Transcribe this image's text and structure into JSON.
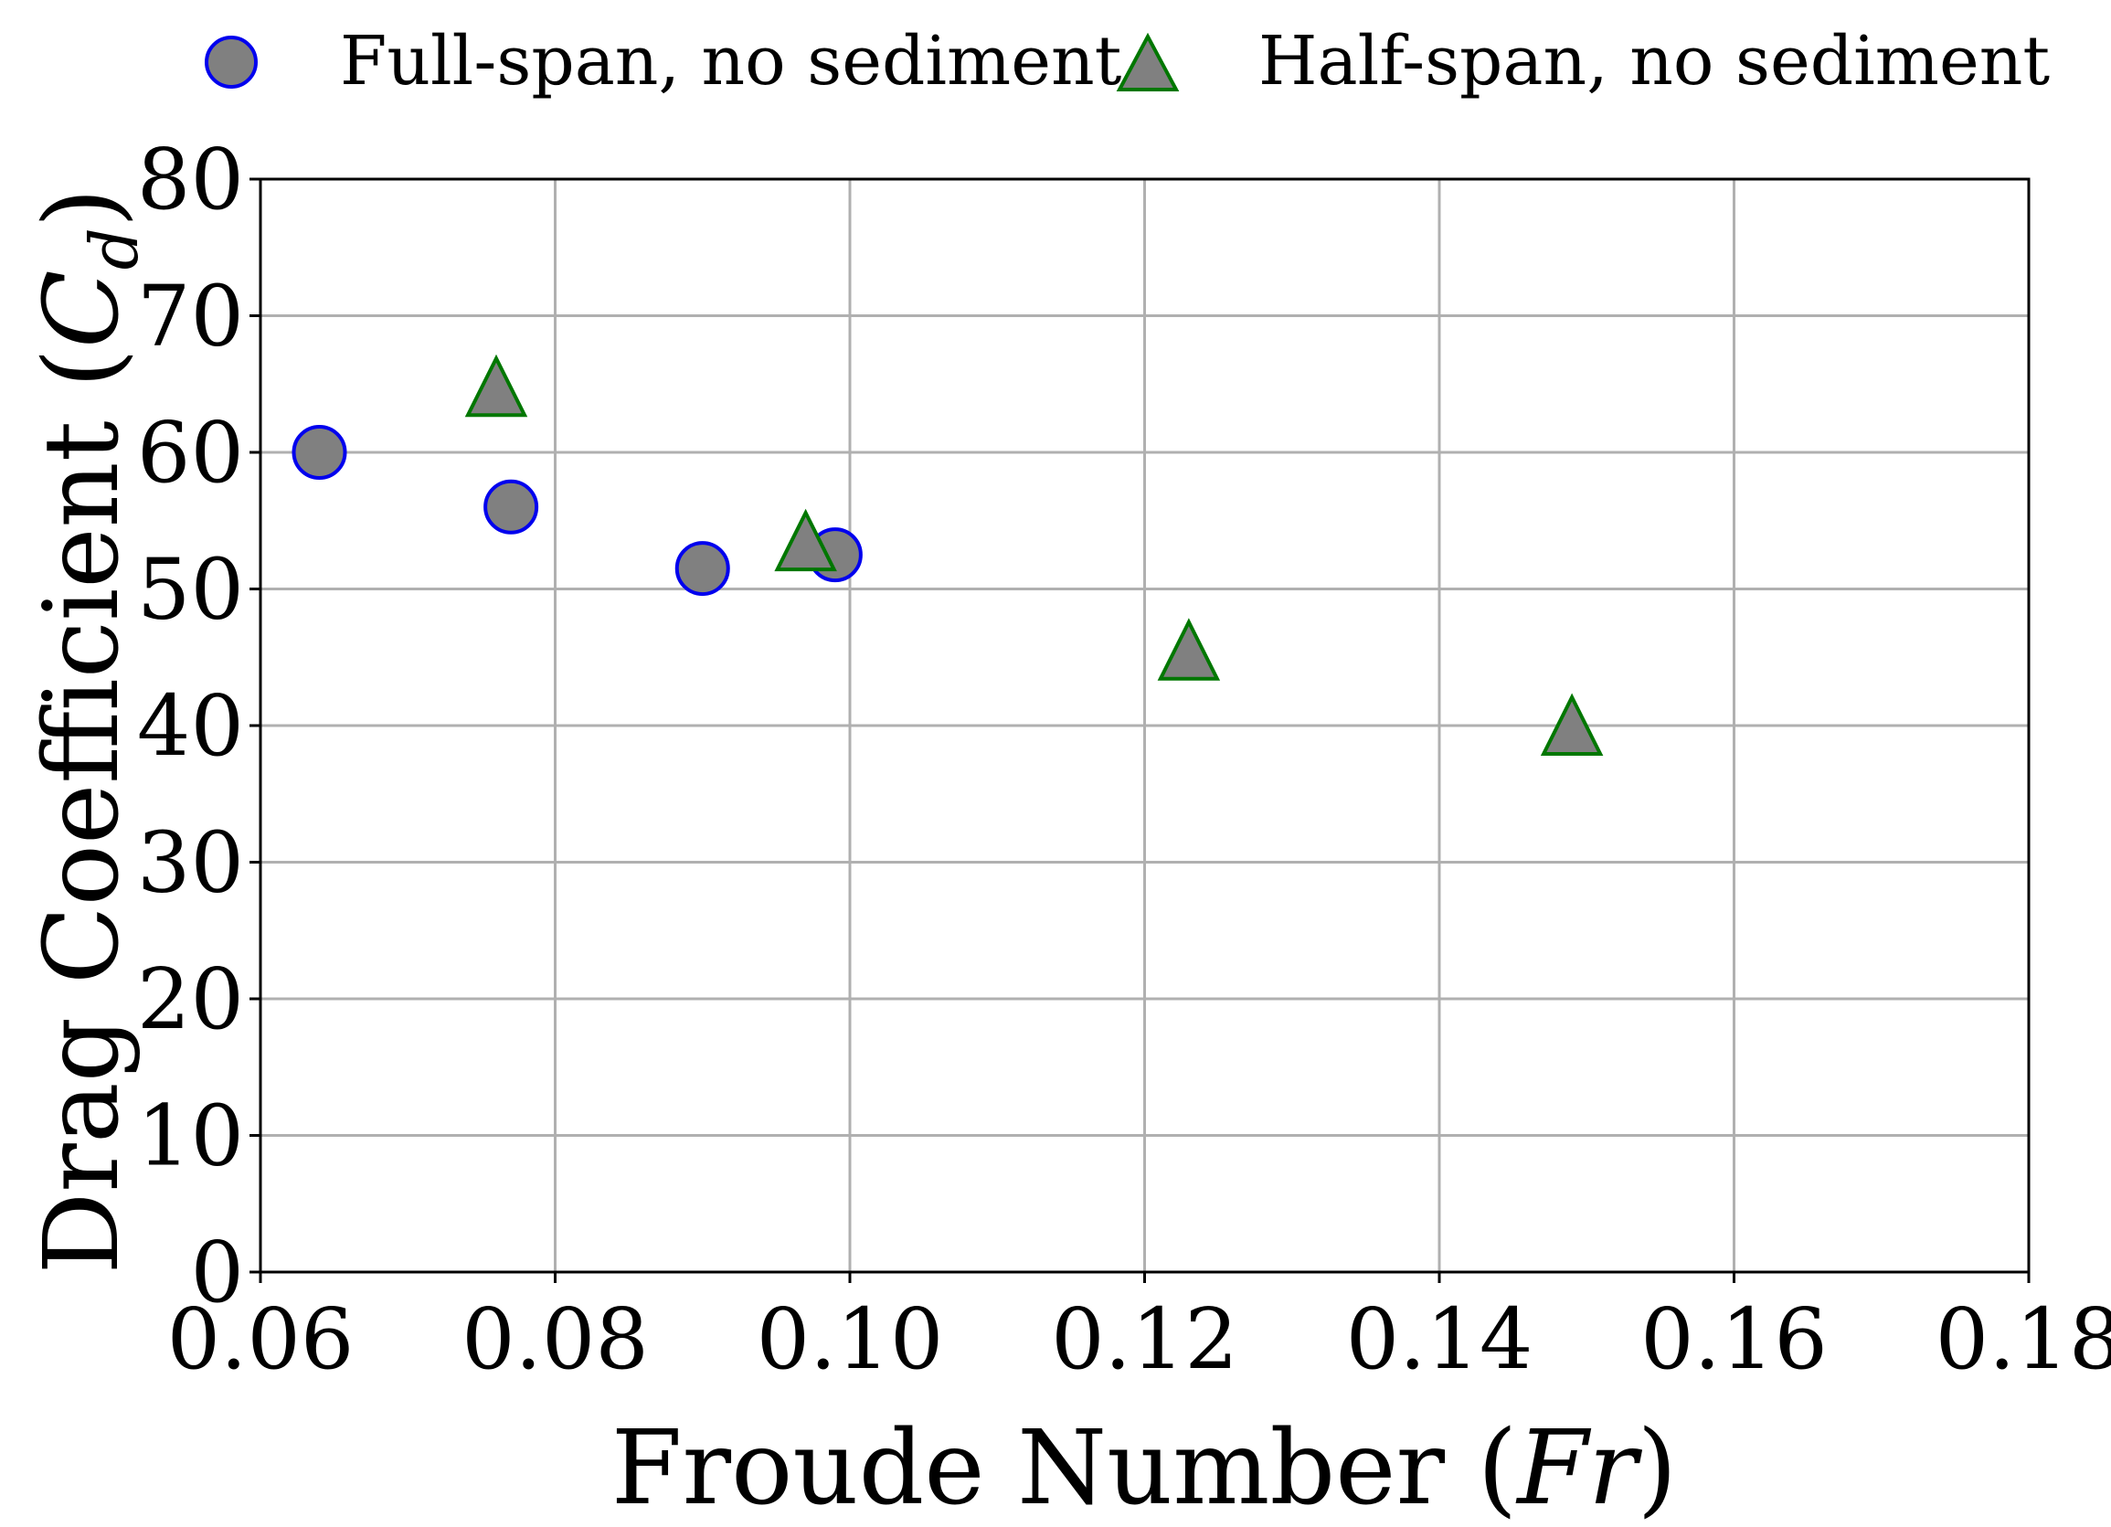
{
  "chart_data": {
    "type": "scatter",
    "title": "",
    "xlabel_main": "Froude Number (",
    "xlabel_symbol": "Fr",
    "xlabel_close": ")",
    "ylabel_main": "Drag Coefficient (",
    "ylabel_symbol": "C",
    "ylabel_sub": "d",
    "ylabel_close": ")",
    "xlim": [
      0.06,
      0.18
    ],
    "ylim": [
      0,
      80
    ],
    "x_ticks": [
      0.06,
      0.08,
      0.1,
      0.12,
      0.14,
      0.16,
      0.18
    ],
    "x_tick_labels": [
      "0.06",
      "0.08",
      "0.10",
      "0.12",
      "0.14",
      "0.16",
      "0.18"
    ],
    "y_ticks": [
      0,
      10,
      20,
      30,
      40,
      50,
      60,
      70,
      80
    ],
    "y_tick_labels": [
      "0",
      "10",
      "20",
      "30",
      "40",
      "50",
      "60",
      "70",
      "80"
    ],
    "grid": true,
    "legend_position": "top, outside plot",
    "series": [
      {
        "name": "Full-span, no sediment",
        "marker": "circle",
        "fill": "#808080",
        "edge": "#0000ee",
        "points": [
          {
            "x": 0.064,
            "y": 60.0
          },
          {
            "x": 0.077,
            "y": 56.0
          },
          {
            "x": 0.09,
            "y": 51.5
          },
          {
            "x": 0.099,
            "y": 52.5
          }
        ]
      },
      {
        "name": "Half-span, no sediment",
        "marker": "triangle",
        "fill": "#808080",
        "edge": "#007700",
        "points": [
          {
            "x": 0.076,
            "y": 64.8
          },
          {
            "x": 0.097,
            "y": 53.5
          },
          {
            "x": 0.123,
            "y": 45.5
          },
          {
            "x": 0.149,
            "y": 40.0
          }
        ]
      }
    ]
  }
}
